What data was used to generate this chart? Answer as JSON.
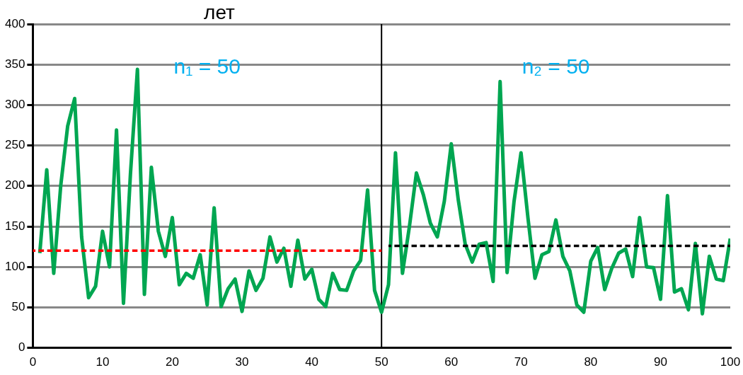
{
  "chart_data": {
    "type": "line",
    "title": "лет",
    "xlim": [
      0,
      100
    ],
    "xticks": [
      0,
      10,
      20,
      30,
      40,
      50,
      60,
      70,
      80,
      90,
      100
    ],
    "ylim": [
      0,
      400
    ],
    "yticks": [
      0,
      50,
      100,
      150,
      200,
      250,
      300,
      350,
      400
    ],
    "grid": "y",
    "legend": false,
    "marker": "none",
    "x": [
      1,
      2,
      3,
      4,
      5,
      6,
      7,
      8,
      9,
      10,
      11,
      12,
      13,
      14,
      15,
      16,
      17,
      18,
      19,
      20,
      21,
      22,
      23,
      24,
      25,
      26,
      27,
      28,
      29,
      30,
      31,
      32,
      33,
      34,
      35,
      36,
      37,
      38,
      39,
      40,
      41,
      42,
      43,
      44,
      45,
      46,
      47,
      48,
      49,
      50,
      51,
      52,
      53,
      54,
      55,
      56,
      57,
      58,
      59,
      60,
      61,
      62,
      63,
      64,
      65,
      66,
      67,
      68,
      69,
      70,
      71,
      72,
      73,
      74,
      75,
      76,
      77,
      78,
      79,
      80,
      81,
      82,
      83,
      84,
      85,
      86,
      87,
      88,
      89,
      90,
      91,
      92,
      93,
      94,
      95,
      96,
      97,
      98,
      99,
      100
    ],
    "series": [
      {
        "color": "#00a651",
        "line_style": "solid",
        "values": [
          117,
          220,
          92,
          200,
          274,
          308,
          137,
          62,
          76,
          144,
          100,
          269,
          55,
          215,
          344,
          66,
          223,
          144,
          113,
          161,
          78,
          92,
          86,
          115,
          53,
          173,
          51,
          73,
          85,
          45,
          95,
          71,
          86,
          137,
          106,
          123,
          76,
          133,
          85,
          97,
          60,
          51,
          92,
          72,
          71,
          95,
          108,
          195,
          71,
          44,
          78,
          241,
          92,
          150,
          216,
          189,
          154,
          137,
          181,
          252,
          183,
          128,
          106,
          128,
          130,
          82,
          329,
          93,
          181,
          241,
          160,
          86,
          115,
          119,
          158,
          113,
          95,
          53,
          44,
          107,
          124,
          72,
          98,
          117,
          122,
          88,
          161,
          100,
          99,
          60,
          188,
          69,
          73,
          47,
          129,
          42,
          113,
          85,
          83,
          135
        ]
      },
      {
        "color": "#ff0000",
        "line_style": "dashed",
        "x": [
          0,
          50
        ],
        "values": [
          120,
          120
        ]
      },
      {
        "color": "#000000",
        "line_style": "dashed",
        "x": [
          51,
          100
        ],
        "values": [
          126,
          126
        ]
      }
    ],
    "ref_lines": [
      {
        "axis": "x",
        "value": 50,
        "color": "#000000"
      }
    ],
    "annotations": [
      "n₁ = 50",
      "n₂ = 50"
    ]
  }
}
